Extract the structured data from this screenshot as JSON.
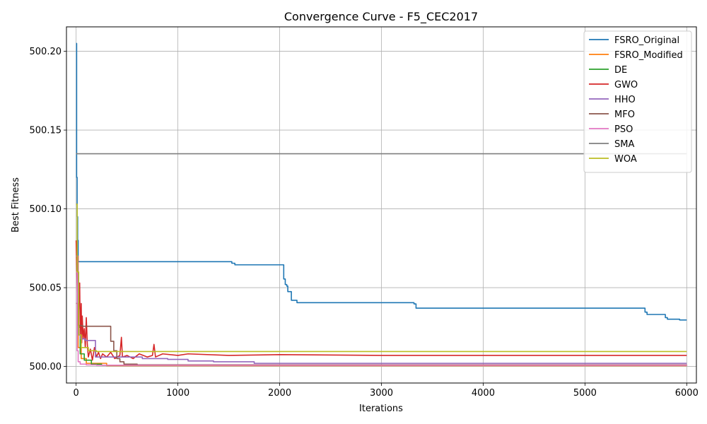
{
  "chart_data": {
    "type": "line",
    "title": "Convergence Curve - F5_CEC2017",
    "xlabel": "Iterations",
    "ylabel": "Best Fitness",
    "xlim": [
      -95,
      6095
    ],
    "ylim": [
      499.9895,
      500.2155
    ],
    "xticks": [
      0,
      1000,
      2000,
      3000,
      4000,
      5000,
      6000
    ],
    "yticks": [
      500.0,
      500.05,
      500.1,
      500.15,
      500.2
    ],
    "ytick_labels": [
      "500.00",
      "500.05",
      "500.10",
      "500.15",
      "500.20"
    ],
    "grid": true,
    "legend_position": "top-right",
    "series": [
      {
        "name": "FSRO_Original",
        "color": "#1f77b4",
        "step": true,
        "points": [
          [
            0,
            500.205
          ],
          [
            5,
            500.12
          ],
          [
            10,
            500.095
          ],
          [
            15,
            500.08
          ],
          [
            20,
            500.0665
          ],
          [
            1520,
            500.0665
          ],
          [
            1530,
            500.0655
          ],
          [
            1560,
            500.0645
          ],
          [
            2030,
            500.0645
          ],
          [
            2040,
            500.0555
          ],
          [
            2055,
            500.052
          ],
          [
            2070,
            500.051
          ],
          [
            2080,
            500.0475
          ],
          [
            2110,
            500.0475
          ],
          [
            2115,
            500.042
          ],
          [
            2170,
            500.0405
          ],
          [
            3250,
            500.0405
          ],
          [
            3320,
            500.0397
          ],
          [
            3340,
            500.037
          ],
          [
            5580,
            500.037
          ],
          [
            5590,
            500.0345
          ],
          [
            5610,
            500.033
          ],
          [
            5780,
            500.033
          ],
          [
            5790,
            500.031
          ],
          [
            5810,
            500.03
          ],
          [
            5920,
            500.03
          ],
          [
            5930,
            500.0295
          ],
          [
            6000,
            500.0295
          ]
        ]
      },
      {
        "name": "FSRO_Modified",
        "color": "#ff7f0e",
        "step": true,
        "points": [
          [
            0,
            500.07
          ],
          [
            20,
            500.012
          ],
          [
            50,
            500.005
          ],
          [
            100,
            500.002
          ],
          [
            300,
            500.0005
          ],
          [
            6000,
            500.0005
          ]
        ]
      },
      {
        "name": "DE",
        "color": "#2ca02c",
        "step": true,
        "points": [
          [
            0,
            500.065
          ],
          [
            15,
            500.025
          ],
          [
            40,
            500.008
          ],
          [
            80,
            500.004
          ],
          [
            150,
            500.0015
          ],
          [
            250,
            500.0008
          ],
          [
            6000,
            500.0005
          ]
        ]
      },
      {
        "name": "GWO",
        "color": "#d62728",
        "step": false,
        "points": [
          [
            0,
            500.08
          ],
          [
            10,
            500.05
          ],
          [
            20,
            500.025
          ],
          [
            30,
            500.048
          ],
          [
            35,
            500.053
          ],
          [
            40,
            500.02
          ],
          [
            50,
            500.04
          ],
          [
            55,
            500.015
          ],
          [
            60,
            500.032
          ],
          [
            70,
            500.018
          ],
          [
            80,
            500.024
          ],
          [
            90,
            500.012
          ],
          [
            100,
            500.031
          ],
          [
            110,
            500.014
          ],
          [
            120,
            500.006
          ],
          [
            140,
            500.011
          ],
          [
            160,
            500.004
          ],
          [
            180,
            500.012
          ],
          [
            200,
            500.006
          ],
          [
            220,
            500.009
          ],
          [
            240,
            500.005
          ],
          [
            260,
            500.008
          ],
          [
            300,
            500.006
          ],
          [
            340,
            500.009
          ],
          [
            380,
            500.005
          ],
          [
            430,
            500.007
          ],
          [
            445,
            500.0185
          ],
          [
            455,
            500.006
          ],
          [
            500,
            500.007
          ],
          [
            560,
            500.005
          ],
          [
            620,
            500.008
          ],
          [
            700,
            500.006
          ],
          [
            750,
            500.007
          ],
          [
            765,
            500.014
          ],
          [
            780,
            500.006
          ],
          [
            850,
            500.008
          ],
          [
            1000,
            500.007
          ],
          [
            1100,
            500.008
          ],
          [
            1500,
            500.007
          ],
          [
            2000,
            500.0075
          ],
          [
            3000,
            500.007
          ],
          [
            6000,
            500.007
          ]
        ]
      },
      {
        "name": "HHO",
        "color": "#9467bd",
        "step": true,
        "points": [
          [
            0,
            500.07
          ],
          [
            15,
            500.02
          ],
          [
            40,
            500.0175
          ],
          [
            90,
            500.0165
          ],
          [
            180,
            500.0165
          ],
          [
            190,
            500.006
          ],
          [
            500,
            500.006
          ],
          [
            650,
            500.005
          ],
          [
            900,
            500.0045
          ],
          [
            1100,
            500.0035
          ],
          [
            1350,
            500.003
          ],
          [
            1750,
            500.002
          ],
          [
            6000,
            500.002
          ]
        ]
      },
      {
        "name": "MFO",
        "color": "#8c564b",
        "step": true,
        "points": [
          [
            0,
            500.04
          ],
          [
            20,
            500.026
          ],
          [
            60,
            500.0255
          ],
          [
            330,
            500.0255
          ],
          [
            340,
            500.016
          ],
          [
            370,
            500.01
          ],
          [
            400,
            500.005
          ],
          [
            430,
            500.003
          ],
          [
            470,
            500.0015
          ],
          [
            600,
            500.001
          ],
          [
            6000,
            500.001
          ]
        ]
      },
      {
        "name": "PSO",
        "color": "#e377c2",
        "step": true,
        "points": [
          [
            0,
            500.06
          ],
          [
            10,
            500.01
          ],
          [
            20,
            500.003
          ],
          [
            40,
            500.0015
          ],
          [
            100,
            500.001
          ],
          [
            200,
            500.0008
          ],
          [
            6000,
            500.0005
          ]
        ]
      },
      {
        "name": "SMA",
        "color": "#7f7f7f",
        "step": true,
        "points": [
          [
            0,
            500.135
          ],
          [
            6000,
            500.135
          ]
        ]
      },
      {
        "name": "WOA",
        "color": "#bcbd22",
        "step": true,
        "points": [
          [
            0,
            500.103
          ],
          [
            10,
            500.06
          ],
          [
            25,
            500.02
          ],
          [
            50,
            500.012
          ],
          [
            120,
            500.01
          ],
          [
            200,
            500.0095
          ],
          [
            6000,
            500.0095
          ]
        ]
      }
    ]
  }
}
